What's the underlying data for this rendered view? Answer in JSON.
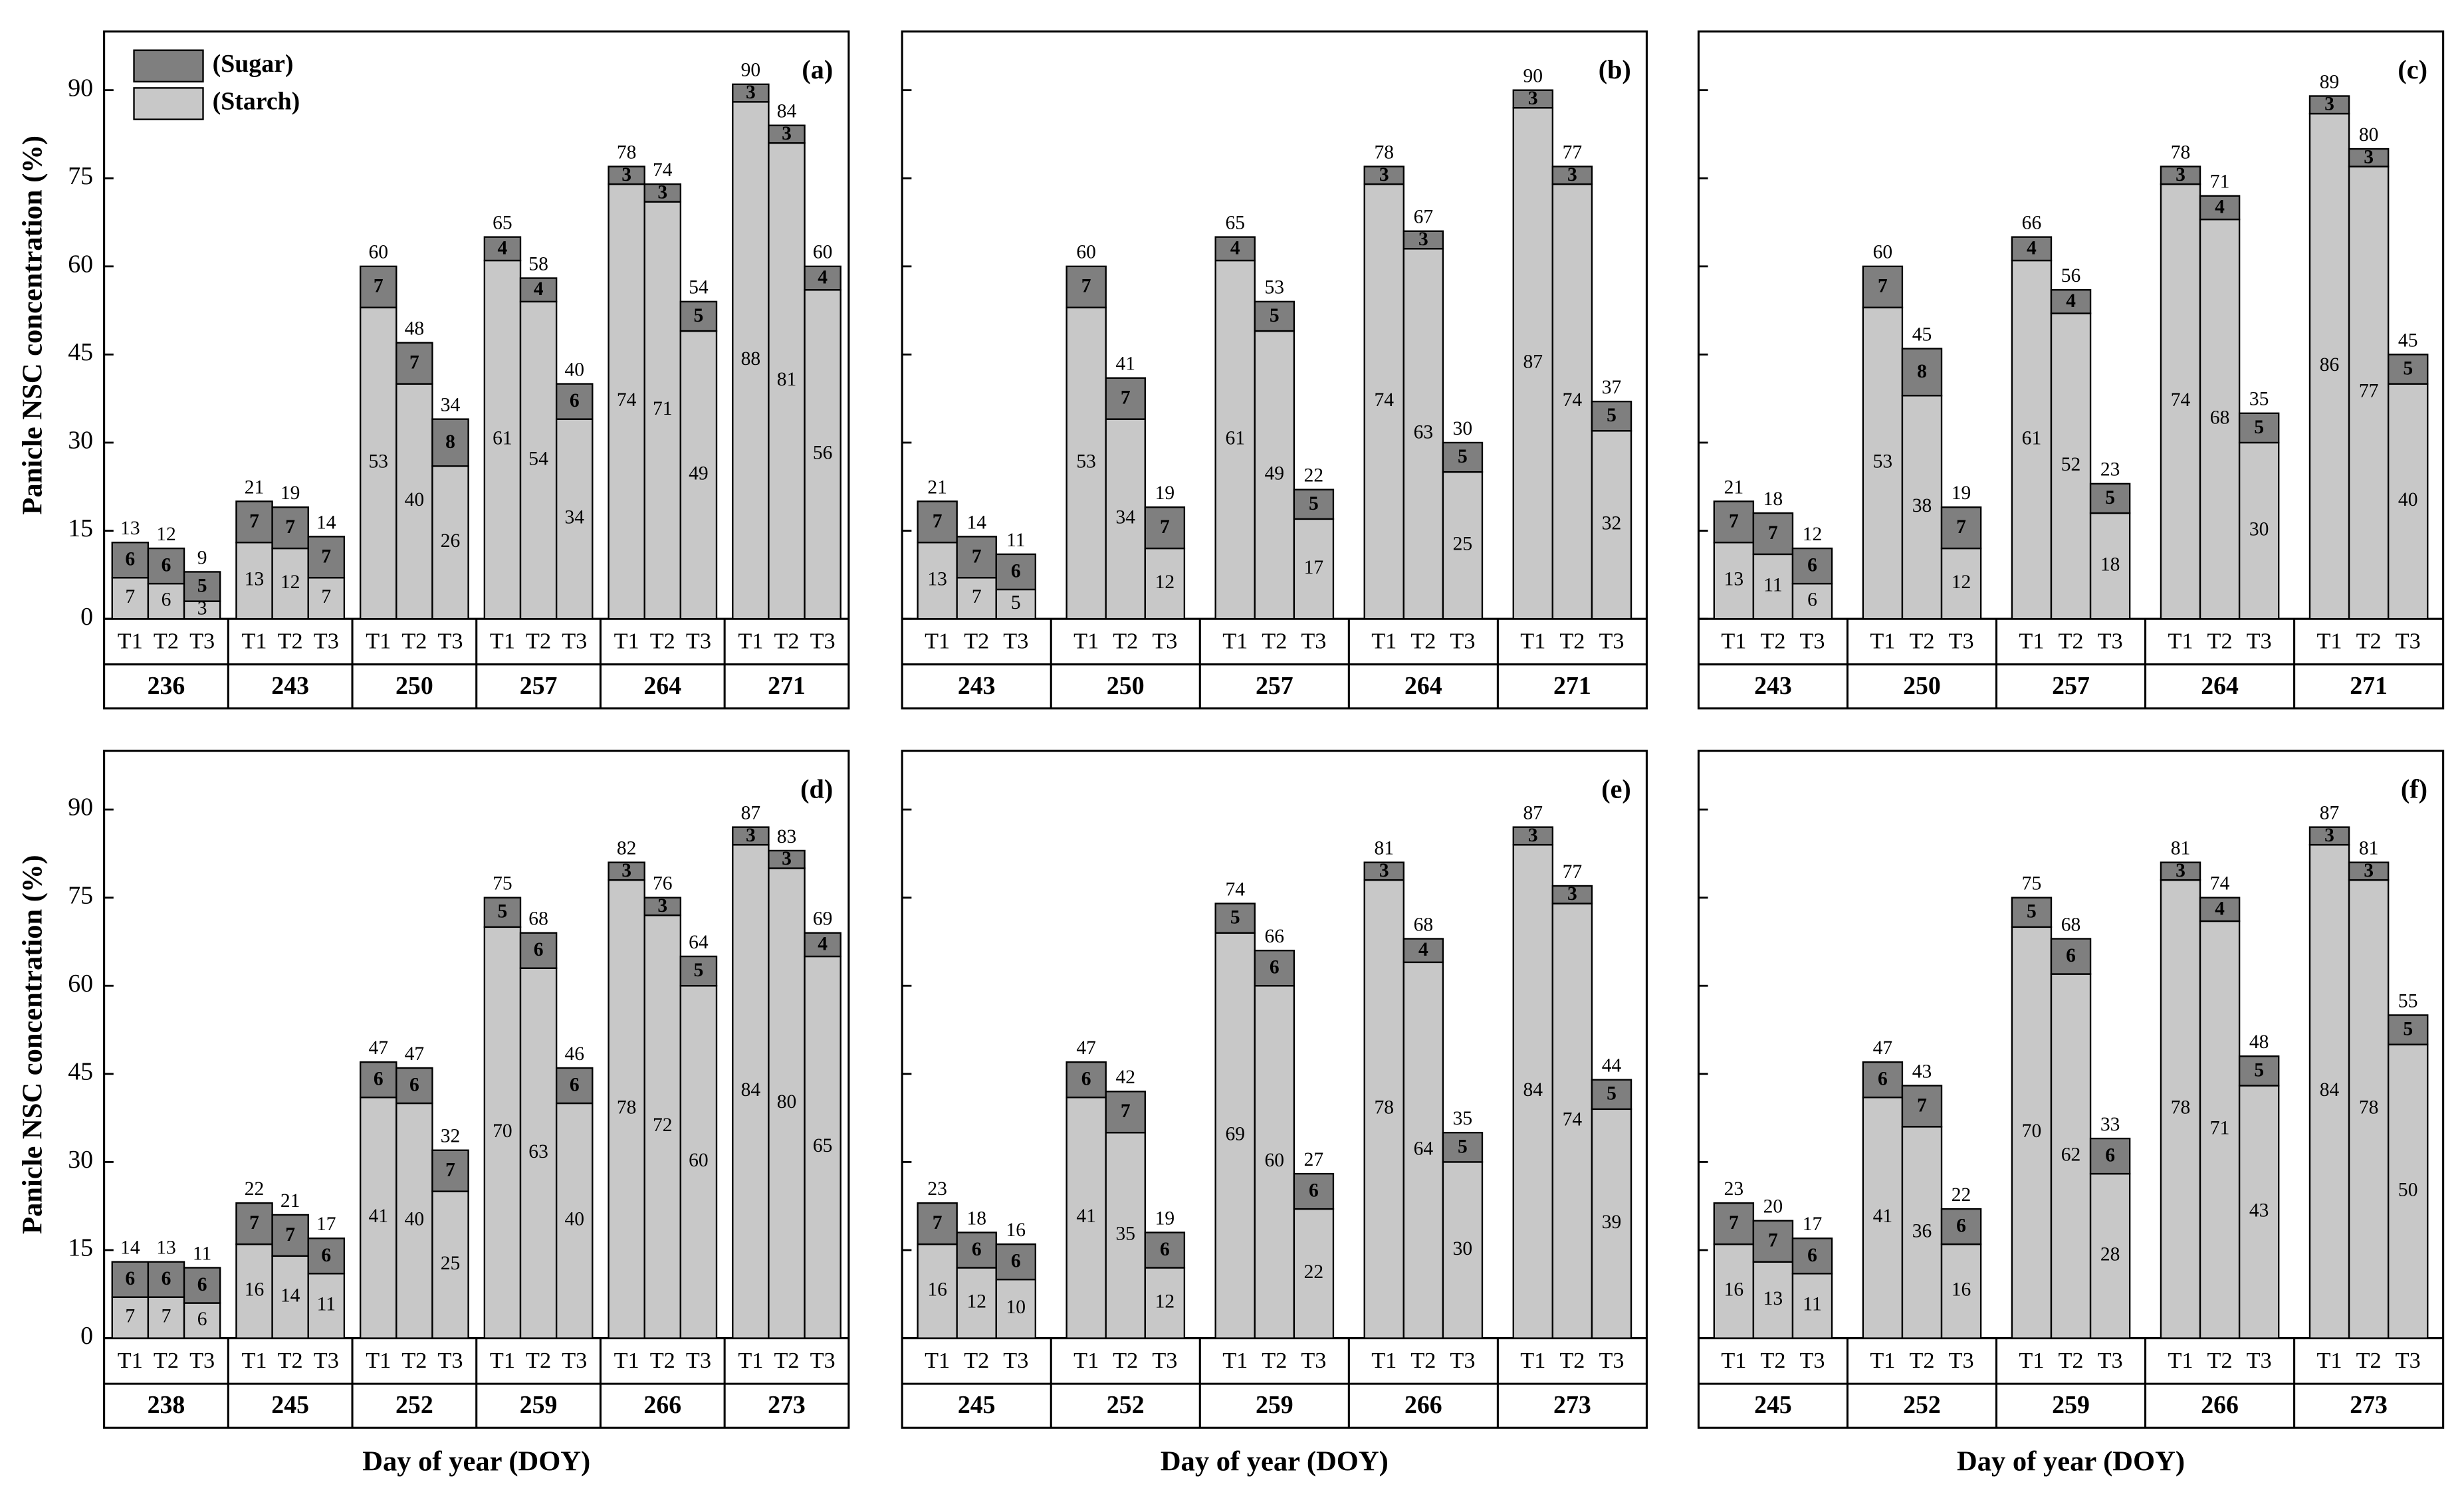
{
  "chart_data": [
    {
      "type": "bar",
      "stacked": true,
      "title": "(a)",
      "ylabel": "Panicle NSC concentration (%)",
      "show_ytick_labels": true,
      "legend": "upper left",
      "groups": [
        "236",
        "243",
        "250",
        "257",
        "264",
        "271"
      ],
      "subcategories": [
        "T1",
        "T2",
        "T3"
      ],
      "series": [
        {
          "name": "(Sugar)",
          "color": "#7f7f7f",
          "values": [
            6,
            6,
            5,
            7,
            7,
            7,
            7,
            7,
            8,
            4,
            4,
            6,
            3,
            3,
            5,
            3,
            3,
            4
          ]
        },
        {
          "name": "(Starch)",
          "color": "#c8c8c8",
          "values": [
            7,
            6,
            3,
            13,
            12,
            7,
            53,
            40,
            26,
            61,
            54,
            34,
            74,
            71,
            49,
            88,
            81,
            56
          ]
        }
      ],
      "totals": [
        13,
        12,
        9,
        21,
        19,
        14,
        60,
        48,
        34,
        65,
        58,
        40,
        78,
        74,
        54,
        90,
        84,
        60
      ],
      "ylim": [
        0,
        100
      ],
      "yticks": [
        0,
        15,
        30,
        45,
        60,
        75,
        90
      ]
    },
    {
      "type": "bar",
      "stacked": true,
      "title": "(b)",
      "show_ytick_labels": false,
      "groups": [
        "243",
        "250",
        "257",
        "264",
        "271"
      ],
      "subcategories": [
        "T1",
        "T2",
        "T3"
      ],
      "series": [
        {
          "color": "#7f7f7f",
          "values": [
            7,
            7,
            6,
            7,
            7,
            7,
            4,
            5,
            5,
            3,
            3,
            5,
            3,
            3,
            5
          ]
        },
        {
          "color": "#c8c8c8",
          "values": [
            13,
            7,
            5,
            53,
            34,
            12,
            61,
            49,
            17,
            74,
            63,
            25,
            87,
            74,
            32
          ]
        }
      ],
      "totals": [
        21,
        14,
        11,
        60,
        41,
        19,
        65,
        53,
        22,
        78,
        67,
        30,
        90,
        77,
        37
      ],
      "ylim": [
        0,
        100
      ],
      "yticks": [
        0,
        15,
        30,
        45,
        60,
        75,
        90
      ]
    },
    {
      "type": "bar",
      "stacked": true,
      "title": "(c)",
      "show_ytick_labels": false,
      "groups": [
        "243",
        "250",
        "257",
        "264",
        "271"
      ],
      "subcategories": [
        "T1",
        "T2",
        "T3"
      ],
      "series": [
        {
          "color": "#7f7f7f",
          "values": [
            7,
            7,
            6,
            7,
            8,
            7,
            4,
            4,
            5,
            3,
            4,
            5,
            3,
            3,
            5
          ]
        },
        {
          "color": "#c8c8c8",
          "values": [
            13,
            11,
            6,
            53,
            38,
            12,
            61,
            52,
            18,
            74,
            68,
            30,
            86,
            77,
            40
          ]
        }
      ],
      "totals": [
        21,
        18,
        12,
        60,
        45,
        19,
        66,
        56,
        23,
        78,
        71,
        35,
        89,
        80,
        45
      ],
      "ylim": [
        0,
        100
      ],
      "yticks": [
        0,
        15,
        30,
        45,
        60,
        75,
        90
      ]
    },
    {
      "type": "bar",
      "stacked": true,
      "title": "(d)",
      "ylabel": "Panicle NSC concentration (%)",
      "xlabel": "Day of year (DOY)",
      "show_ytick_labels": true,
      "groups": [
        "238",
        "245",
        "252",
        "259",
        "266",
        "273"
      ],
      "subcategories": [
        "T1",
        "T2",
        "T3"
      ],
      "series": [
        {
          "color": "#7f7f7f",
          "values": [
            6,
            6,
            6,
            7,
            7,
            6,
            6,
            6,
            7,
            5,
            6,
            6,
            3,
            3,
            5,
            3,
            3,
            4
          ]
        },
        {
          "color": "#c8c8c8",
          "values": [
            7,
            7,
            6,
            16,
            14,
            11,
            41,
            40,
            25,
            70,
            63,
            40,
            78,
            72,
            60,
            84,
            80,
            65
          ]
        }
      ],
      "totals": [
        14,
        13,
        11,
        22,
        21,
        17,
        47,
        47,
        32,
        75,
        68,
        46,
        82,
        76,
        64,
        87,
        83,
        69
      ],
      "ylim": [
        0,
        100
      ],
      "yticks": [
        0,
        15,
        30,
        45,
        60,
        75,
        90
      ]
    },
    {
      "type": "bar",
      "stacked": true,
      "title": "(e)",
      "xlabel": "Day of year (DOY)",
      "show_ytick_labels": false,
      "groups": [
        "245",
        "252",
        "259",
        "266",
        "273"
      ],
      "subcategories": [
        "T1",
        "T2",
        "T3"
      ],
      "series": [
        {
          "color": "#7f7f7f",
          "values": [
            7,
            6,
            6,
            6,
            7,
            6,
            5,
            6,
            6,
            3,
            4,
            5,
            3,
            3,
            5
          ]
        },
        {
          "color": "#c8c8c8",
          "values": [
            16,
            12,
            10,
            41,
            35,
            12,
            69,
            60,
            22,
            78,
            64,
            30,
            84,
            74,
            39
          ]
        }
      ],
      "totals": [
        23,
        18,
        16,
        47,
        42,
        19,
        74,
        66,
        27,
        81,
        68,
        35,
        87,
        77,
        44
      ],
      "ylim": [
        0,
        100
      ],
      "yticks": [
        0,
        15,
        30,
        45,
        60,
        75,
        90
      ]
    },
    {
      "type": "bar",
      "stacked": true,
      "title": "(f)",
      "xlabel": "Day of year (DOY)",
      "show_ytick_labels": false,
      "groups": [
        "245",
        "252",
        "259",
        "266",
        "273"
      ],
      "subcategories": [
        "T1",
        "T2",
        "T3"
      ],
      "series": [
        {
          "color": "#7f7f7f",
          "values": [
            7,
            7,
            6,
            6,
            7,
            6,
            5,
            6,
            6,
            3,
            4,
            5,
            3,
            3,
            5
          ]
        },
        {
          "color": "#c8c8c8",
          "values": [
            16,
            13,
            11,
            41,
            36,
            16,
            70,
            62,
            28,
            78,
            71,
            43,
            84,
            78,
            50
          ]
        }
      ],
      "totals": [
        23,
        20,
        17,
        47,
        43,
        22,
        75,
        68,
        33,
        81,
        74,
        48,
        87,
        81,
        55
      ],
      "ylim": [
        0,
        100
      ],
      "yticks": [
        0,
        15,
        30,
        45,
        60,
        75,
        90
      ]
    }
  ]
}
